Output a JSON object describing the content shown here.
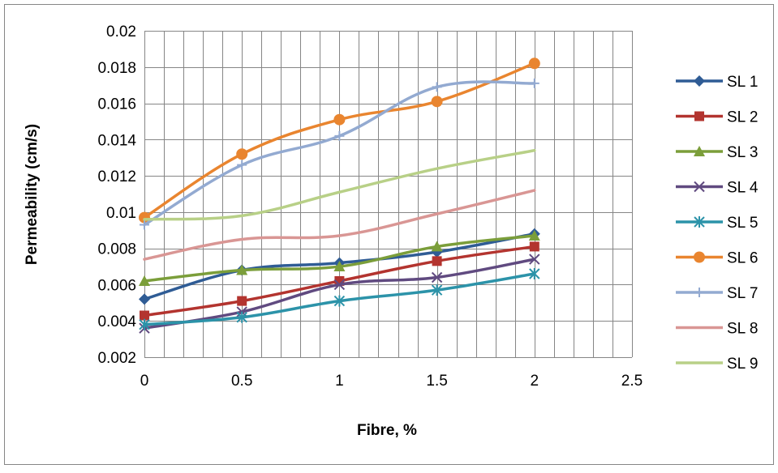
{
  "chart_data": {
    "type": "line",
    "title": "",
    "xlabel": "Fibre, %",
    "ylabel": "Permeability (cm/s)",
    "xlim": [
      0,
      2.5
    ],
    "ylim": [
      0.002,
      0.02
    ],
    "x_ticks": [
      "0",
      "0.5",
      "1",
      "1.5",
      "2",
      "2.5"
    ],
    "y_ticks": [
      "0.002",
      "0.004",
      "0.006",
      "0.008",
      "0.01",
      "0.012",
      "0.014",
      "0.016",
      "0.018",
      "0.02"
    ],
    "grid": true,
    "legend_position": "right",
    "x": [
      0,
      0.5,
      1,
      1.5,
      2
    ],
    "series": [
      {
        "name": "SL 1",
        "values": [
          0.0052,
          0.0068,
          0.0072,
          0.0078,
          0.0088
        ],
        "color": "#2F5C95",
        "marker": "diamond"
      },
      {
        "name": "SL 2",
        "values": [
          0.0043,
          0.0051,
          0.0062,
          0.0073,
          0.0081
        ],
        "color": "#B3342F",
        "marker": "square"
      },
      {
        "name": "SL 3",
        "values": [
          0.0062,
          0.0068,
          0.007,
          0.0081,
          0.0087
        ],
        "color": "#7B9E3A",
        "marker": "triangle"
      },
      {
        "name": "SL 4",
        "values": [
          0.0036,
          0.0045,
          0.006,
          0.0064,
          0.0074
        ],
        "color": "#604A80",
        "marker": "x"
      },
      {
        "name": "SL 5",
        "values": [
          0.0038,
          0.0042,
          0.0051,
          0.0057,
          0.0066
        ],
        "color": "#2C93A9",
        "marker": "star"
      },
      {
        "name": "SL 6",
        "values": [
          0.0097,
          0.0132,
          0.0151,
          0.0161,
          0.0182
        ],
        "color": "#E9852F",
        "marker": "circle"
      },
      {
        "name": "SL 7",
        "values": [
          0.0093,
          0.0126,
          0.0142,
          0.0169,
          0.0171
        ],
        "color": "#93AAD1",
        "marker": "plus"
      },
      {
        "name": "SL 8",
        "values": [
          0.0074,
          0.0085,
          0.0087,
          0.0099,
          0.0112
        ],
        "color": "#D99694",
        "marker": "dash"
      },
      {
        "name": "SL 9",
        "values": [
          0.0096,
          0.0098,
          0.0111,
          0.0124,
          0.0134
        ],
        "color": "#B8D087",
        "marker": "dash"
      }
    ]
  }
}
